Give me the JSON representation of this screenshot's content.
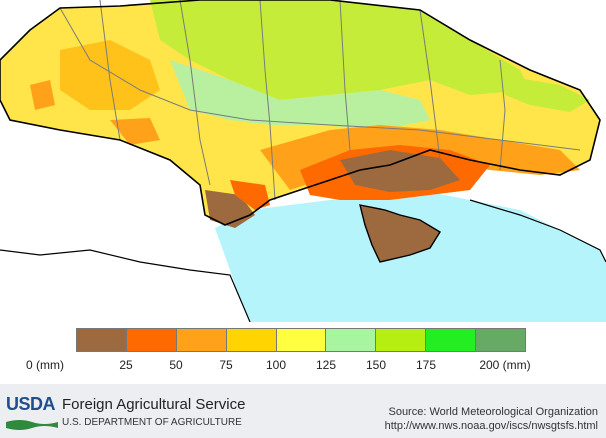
{
  "legend": {
    "colors": [
      "#9c6a3e",
      "#ff6a00",
      "#ffa21a",
      "#ffd400",
      "#ffff40",
      "#a8f5a0",
      "#b5ee10",
      "#22ee22",
      "#66aa66"
    ],
    "ticks": [
      "0 (mm)",
      "25",
      "50",
      "75",
      "100",
      "125",
      "150",
      "175",
      "200 (mm)"
    ]
  },
  "map_colors": {
    "sea": "#b6f4fc",
    "land_outside": "#ffffff",
    "border": "#7a7a7a",
    "coast": "#000000"
  },
  "footer": {
    "logo_text": "USDA",
    "agency": "Foreign Agricultural Service",
    "department": "U.S. DEPARTMENT OF AGRICULTURE",
    "source_line1": "Source: World Meteorological Organization",
    "source_line2": "http://www.nws.noaa.gov/iscs/nwsgtsfs.html"
  }
}
